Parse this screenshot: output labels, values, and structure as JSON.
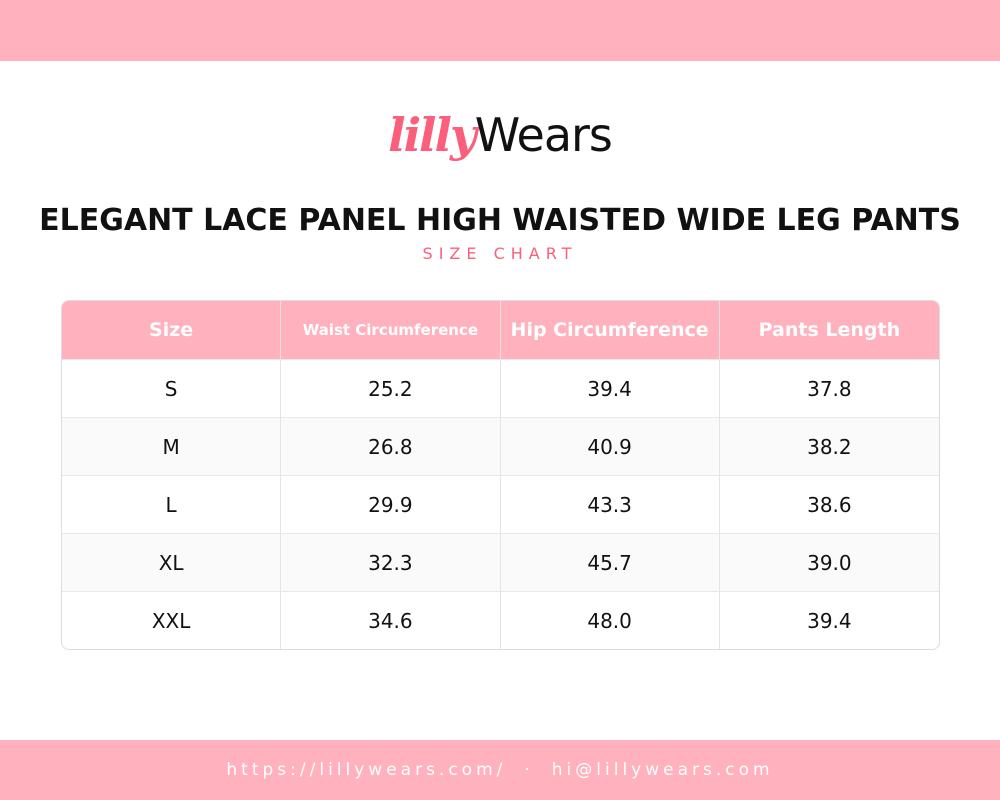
{
  "brand": {
    "logo_text_1": "lilly",
    "logo_text_2": "Wears",
    "accent": "#fc5f7b",
    "band_color": "#ffb1bd"
  },
  "title": "ELEGANT LACE PANEL HIGH WAISTED WIDE LEG PANTS",
  "subtitle": "SIZE CHART",
  "table": {
    "headers": [
      "Size",
      "Waist Circumference",
      "Hip Circumference",
      "Pants Length"
    ],
    "rows": [
      [
        "S",
        "25.2",
        "39.4",
        "37.8"
      ],
      [
        "M",
        "26.8",
        "40.9",
        "38.2"
      ],
      [
        "L",
        "29.9",
        "43.3",
        "38.6"
      ],
      [
        "XL",
        "32.3",
        "45.7",
        "39.0"
      ],
      [
        "XXL",
        "34.6",
        "48.0",
        "39.4"
      ]
    ]
  },
  "footer": {
    "website": "https://lillywears.com/",
    "separator": "·",
    "email": "hi@lillywears.com"
  }
}
